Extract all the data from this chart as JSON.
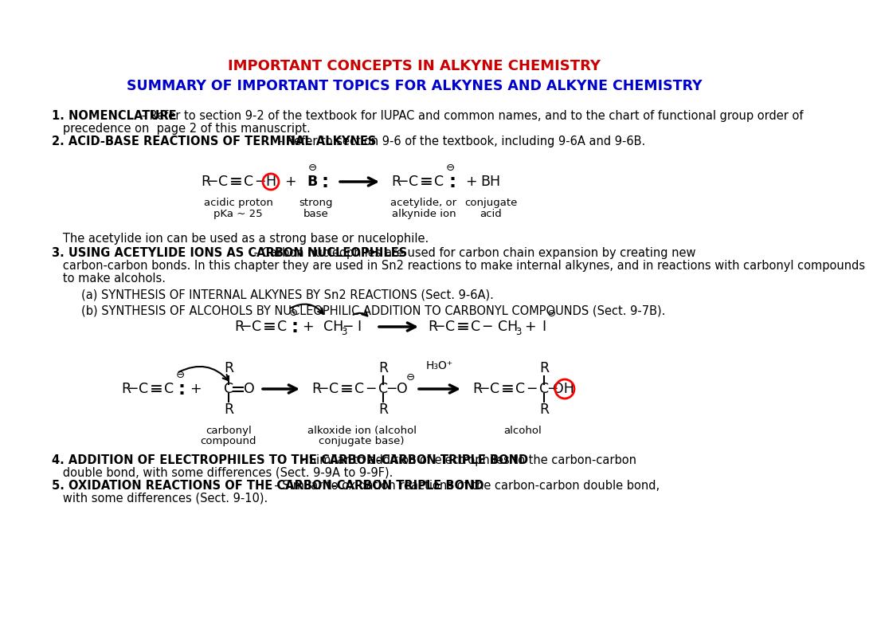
{
  "title1": "IMPORTANT CONCEPTS IN ALKYNE CHEMISTRY",
  "title2": "SUMMARY OF IMPORTANT TOPICS FOR ALKYNES AND ALKYNE CHEMISTRY",
  "title1_color": "#CC0000",
  "title2_color": "#0000CC",
  "bg_color": "#FFFFFF",
  "s1_bold": "1. NOMENCLATURE",
  "s1_rest": " - Refer to section 9-2 of the textbook for IUPAC and common names, and to the chart of functional group order of",
  "s1_rest2": "   precedence on  page 2 of this manuscript.",
  "s2_bold": "2. ACID-BASE REACTIONS OF TERMINAL ALKYNES",
  "s2_rest": " - Refer to section 9-6 of the textbook, including 9-6A and 9-6B.",
  "acetylide_note": "   The acetylide ion can be used as a strong base or nucelophile.",
  "s3_bold": "3. USING ACETYLIDE IONS AS CARBON NUCLEOPHILES",
  "s3_rest1": " - Carbon nucleophiles are used for carbon chain expansion by creating new",
  "s3_rest2": "   carbon-carbon bonds. In this chapter they are used in Sn2 reactions to make internal alkynes, and in reactions with carbonyl compounds",
  "s3_rest3": "   to make alcohols.",
  "sub3a": "        (a) SYNTHESIS OF INTERNAL ALKYNES BY Sn2 REACTIONS (Sect. 9-6A).",
  "sub3b": "        (b) SYNTHESIS OF ALCOHOLS BY NUCLEOPHILIC ADDITION TO CARBONYL COMPOUNDS (Sect. 9-7B).",
  "s4_bold": "4. ADDITION OF ELECTROPHILES TO THE CARBON-CARBON TRIPLE BOND",
  "s4_rest1": " - Similar to addition of electrophiles to the carbon-carbon",
  "s4_rest2": "   double bond, with some differences (Sect. 9-9A to 9-9F).",
  "s5_bold": "5. OXIDATION REACTIONS OF THE CARBON-CARBON TRIPLE BOND",
  "s5_rest1": "  - Similar to oxidation reactions of the carbon-carbon double bond,",
  "s5_rest2": "   with some differences (Sect. 9-10)."
}
